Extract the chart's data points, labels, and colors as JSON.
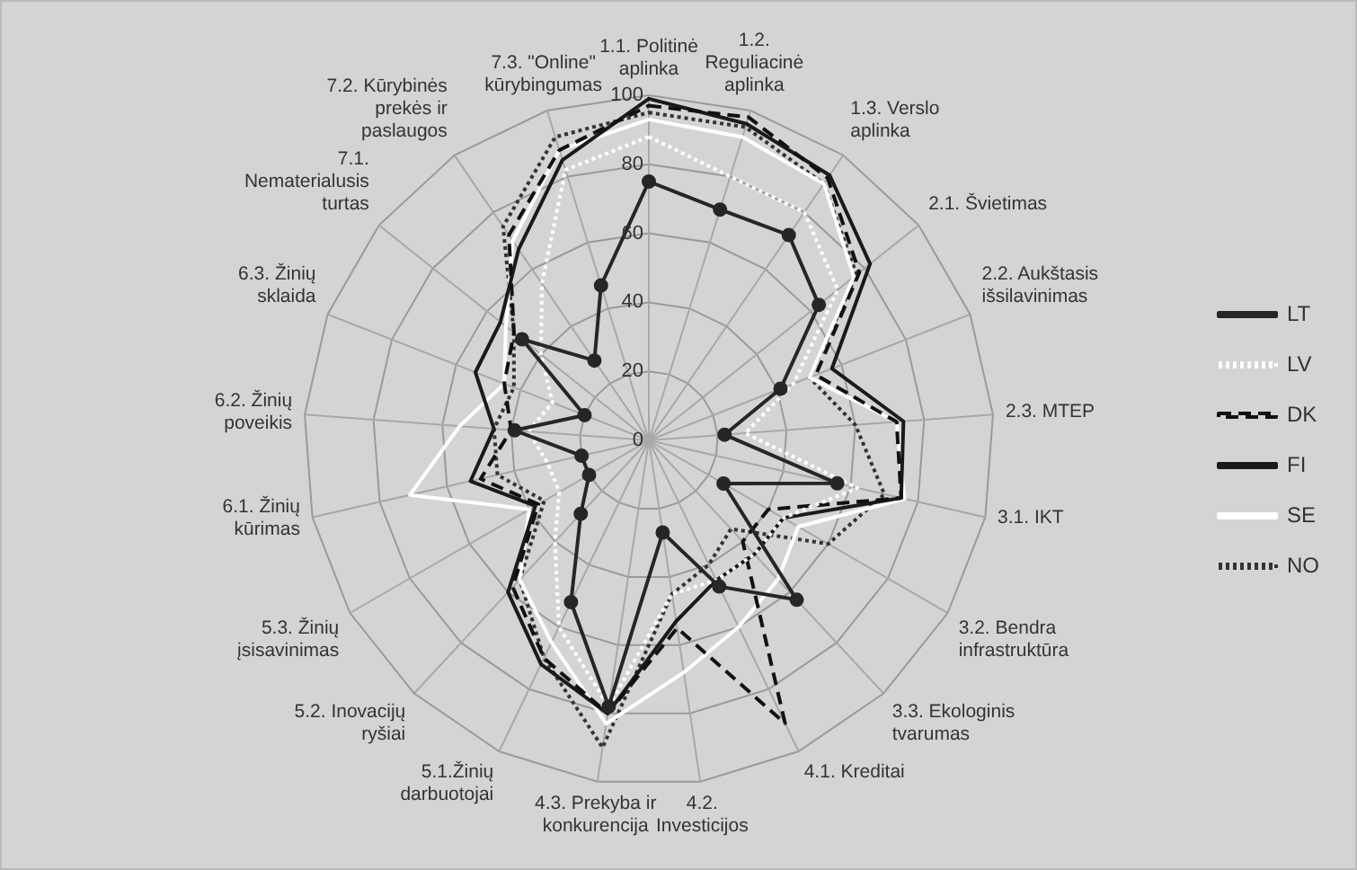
{
  "chart_data": {
    "type": "radar",
    "categories": [
      "1.1. Politinė aplinka",
      "1.2. Reguliacinė aplinka",
      "1.3. Verslo aplinka",
      "2.1. Švietimas",
      "2.2. Aukštasis išsilavinimas",
      "2.3. MTEP",
      "3.1. IKT",
      "3.2. Bendra infrastruktūra",
      "3.3. Ekologinis tvarumas",
      "4.1. Kreditai",
      "4.2. Investicijos",
      "4.3. Prekyba ir konkurencija",
      "5.1.Žinių darbuotojai",
      "5.2. Inovacijų ryšiai",
      "5.3. Žinių įsisavinimas",
      "6.1. Žinių kūrimas",
      "6.2. Žinių poveikis",
      "6.3. Žinių sklaida",
      "7.1. Nematerialusis turtas",
      "7.2. Kūrybinės prekės ir paslaugos",
      "7.3. \"Online\" kūrybingumas"
    ],
    "series": [
      {
        "name": "LT",
        "color": "#262626",
        "marker": "circle",
        "line_style": "solid",
        "values": [
          75,
          70,
          72,
          63,
          41,
          22,
          56,
          25,
          63,
          47,
          27,
          78,
          52,
          29,
          20,
          20,
          39,
          20,
          47,
          28,
          47
        ]
      },
      {
        "name": "LV",
        "color": "#ffffff",
        "marker": "none",
        "line_style": "dotted",
        "values": [
          88,
          80,
          80,
          70,
          45,
          28,
          62,
          45,
          45,
          45,
          45,
          78,
          60,
          40,
          30,
          30,
          35,
          30,
          40,
          55,
          82
        ]
      },
      {
        "name": "DK",
        "color": "#111111",
        "marker": "none",
        "line_style": "dashed",
        "values": [
          97,
          98,
          92,
          78,
          52,
          72,
          75,
          40,
          40,
          91,
          55,
          80,
          70,
          58,
          37,
          50,
          40,
          45,
          50,
          72,
          88
        ]
      },
      {
        "name": "FI",
        "color": "#1a1a1a",
        "marker": "none",
        "line_style": "solid",
        "values": [
          99,
          96,
          93,
          82,
          57,
          74,
          75,
          45,
          45,
          45,
          53,
          80,
          72,
          60,
          38,
          53,
          45,
          54,
          55,
          67,
          85
        ]
      },
      {
        "name": "SE",
        "color": "#ffffff",
        "marker": "none",
        "line_style": "solid",
        "values": [
          93,
          92,
          90,
          76,
          50,
          72,
          76,
          50,
          55,
          60,
          68,
          83,
          65,
          55,
          40,
          71,
          55,
          45,
          53,
          70,
          88
        ]
      },
      {
        "name": "NO",
        "color": "#333333",
        "marker": "none",
        "line_style": "dotted",
        "values": [
          95,
          95,
          90,
          77,
          50,
          60,
          70,
          60,
          35,
          40,
          45,
          90,
          70,
          55,
          35,
          45,
          45,
          42,
          50,
          75,
          92
        ]
      }
    ],
    "ylim": [
      0,
      100
    ],
    "yticks": [
      0,
      20,
      40,
      60,
      80,
      100
    ],
    "grid": true,
    "legend": "right"
  }
}
